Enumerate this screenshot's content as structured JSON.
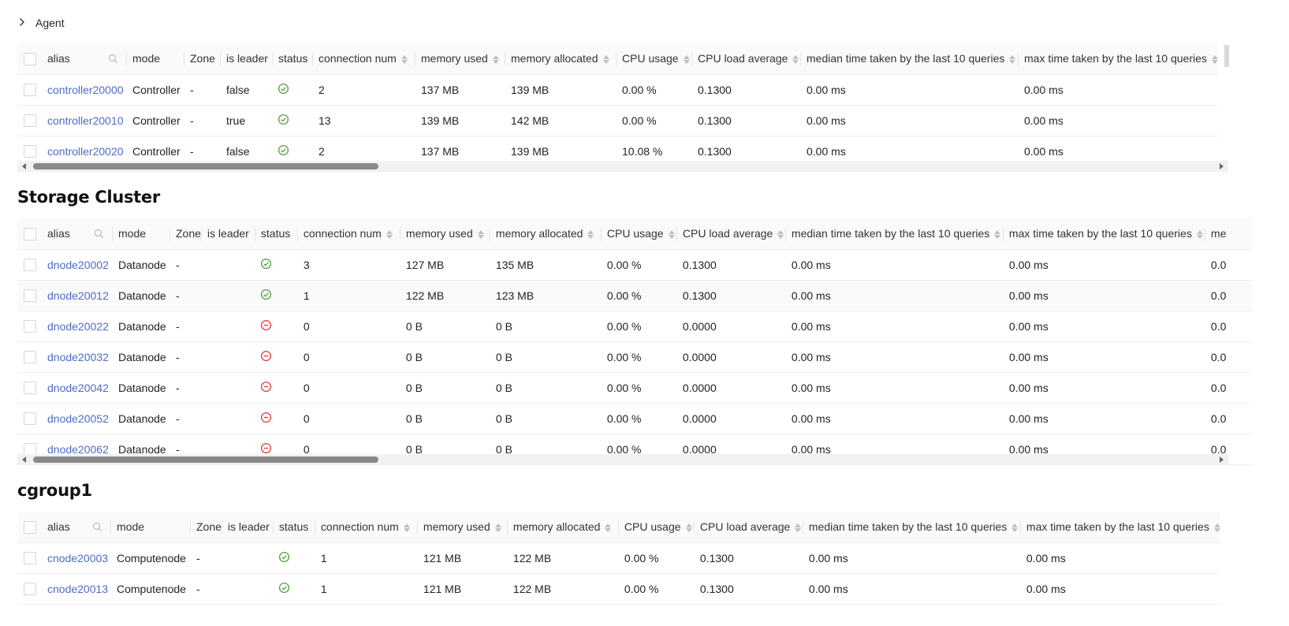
{
  "agent": {
    "label": "Agent"
  },
  "columns": {
    "alias": "alias",
    "mode": "mode",
    "zone": "Zone",
    "is_leader": "is leader",
    "status": "status",
    "connection_num": "connection num",
    "memory_used": "memory used",
    "memory_allocated": "memory allocated",
    "cpu_usage": "CPU usage",
    "cpu_load_average": "CPU load average",
    "median_time": "median time taken by the last 10 queries",
    "max_time": "max time taken by the last 10 queries",
    "truncated": "me"
  },
  "status_colors": {
    "online": "#52a340",
    "offline": "#e0403a"
  },
  "link_color": "#4f6cc4",
  "controller_rows": [
    {
      "alias": "controller20000",
      "mode": "Controller",
      "zone": "-",
      "is_leader": "false",
      "status": "online",
      "connection_num": "2",
      "memory_used": "137 MB",
      "memory_allocated": "139 MB",
      "cpu_usage": "0.00 %",
      "cpu_load_average": "0.1300",
      "median_time": "0.00 ms",
      "max_time": "0.00 ms"
    },
    {
      "alias": "controller20010",
      "mode": "Controller",
      "zone": "-",
      "is_leader": "true",
      "status": "online",
      "connection_num": "13",
      "memory_used": "139 MB",
      "memory_allocated": "142 MB",
      "cpu_usage": "0.00 %",
      "cpu_load_average": "0.1300",
      "median_time": "0.00 ms",
      "max_time": "0.00 ms"
    },
    {
      "alias": "controller20020",
      "mode": "Controller",
      "zone": "-",
      "is_leader": "false",
      "status": "online",
      "connection_num": "2",
      "memory_used": "137 MB",
      "memory_allocated": "139 MB",
      "cpu_usage": "10.08 %",
      "cpu_load_average": "0.1300",
      "median_time": "0.00 ms",
      "max_time": "0.00 ms"
    }
  ],
  "storage": {
    "title": "Storage Cluster",
    "rows": [
      {
        "alias": "dnode20002",
        "mode": "Datanode",
        "zone": "-",
        "is_leader": "",
        "status": "online",
        "connection_num": "3",
        "memory_used": "127 MB",
        "memory_allocated": "135 MB",
        "cpu_usage": "0.00 %",
        "cpu_load_average": "0.1300",
        "median_time": "0.00 ms",
        "max_time": "0.00 ms",
        "truncated": "0.0"
      },
      {
        "alias": "dnode20012",
        "mode": "Datanode",
        "zone": "-",
        "is_leader": "",
        "status": "online",
        "connection_num": "1",
        "memory_used": "122 MB",
        "memory_allocated": "123 MB",
        "cpu_usage": "0.00 %",
        "cpu_load_average": "0.1300",
        "median_time": "0.00 ms",
        "max_time": "0.00 ms",
        "truncated": "0.0"
      },
      {
        "alias": "dnode20022",
        "mode": "Datanode",
        "zone": "-",
        "is_leader": "",
        "status": "offline",
        "connection_num": "0",
        "memory_used": "0 B",
        "memory_allocated": "0 B",
        "cpu_usage": "0.00 %",
        "cpu_load_average": "0.0000",
        "median_time": "0.00 ms",
        "max_time": "0.00 ms",
        "truncated": "0.0"
      },
      {
        "alias": "dnode20032",
        "mode": "Datanode",
        "zone": "-",
        "is_leader": "",
        "status": "offline",
        "connection_num": "0",
        "memory_used": "0 B",
        "memory_allocated": "0 B",
        "cpu_usage": "0.00 %",
        "cpu_load_average": "0.0000",
        "median_time": "0.00 ms",
        "max_time": "0.00 ms",
        "truncated": "0.0"
      },
      {
        "alias": "dnode20042",
        "mode": "Datanode",
        "zone": "-",
        "is_leader": "",
        "status": "offline",
        "connection_num": "0",
        "memory_used": "0 B",
        "memory_allocated": "0 B",
        "cpu_usage": "0.00 %",
        "cpu_load_average": "0.0000",
        "median_time": "0.00 ms",
        "max_time": "0.00 ms",
        "truncated": "0.0"
      },
      {
        "alias": "dnode20052",
        "mode": "Datanode",
        "zone": "-",
        "is_leader": "",
        "status": "offline",
        "connection_num": "0",
        "memory_used": "0 B",
        "memory_allocated": "0 B",
        "cpu_usage": "0.00 %",
        "cpu_load_average": "0.0000",
        "median_time": "0.00 ms",
        "max_time": "0.00 ms",
        "truncated": "0.0"
      },
      {
        "alias": "dnode20062",
        "mode": "Datanode",
        "zone": "-",
        "is_leader": "",
        "status": "offline",
        "connection_num": "0",
        "memory_used": "0 B",
        "memory_allocated": "0 B",
        "cpu_usage": "0.00 %",
        "cpu_load_average": "0.0000",
        "median_time": "0.00 ms",
        "max_time": "0.00 ms",
        "truncated": "0.0"
      }
    ]
  },
  "cgroup": {
    "title": "cgroup1",
    "rows": [
      {
        "alias": "cnode20003",
        "mode": "Computenode",
        "zone": "-",
        "is_leader": "",
        "status": "online",
        "connection_num": "1",
        "memory_used": "121 MB",
        "memory_allocated": "122 MB",
        "cpu_usage": "0.00 %",
        "cpu_load_average": "0.1300",
        "median_time": "0.00 ms",
        "max_time": "0.00 ms"
      },
      {
        "alias": "cnode20013",
        "mode": "Computenode",
        "zone": "-",
        "is_leader": "",
        "status": "online",
        "connection_num": "1",
        "memory_used": "121 MB",
        "memory_allocated": "122 MB",
        "cpu_usage": "0.00 %",
        "cpu_load_average": "0.1300",
        "median_time": "0.00 ms",
        "max_time": "0.00 ms"
      }
    ]
  }
}
